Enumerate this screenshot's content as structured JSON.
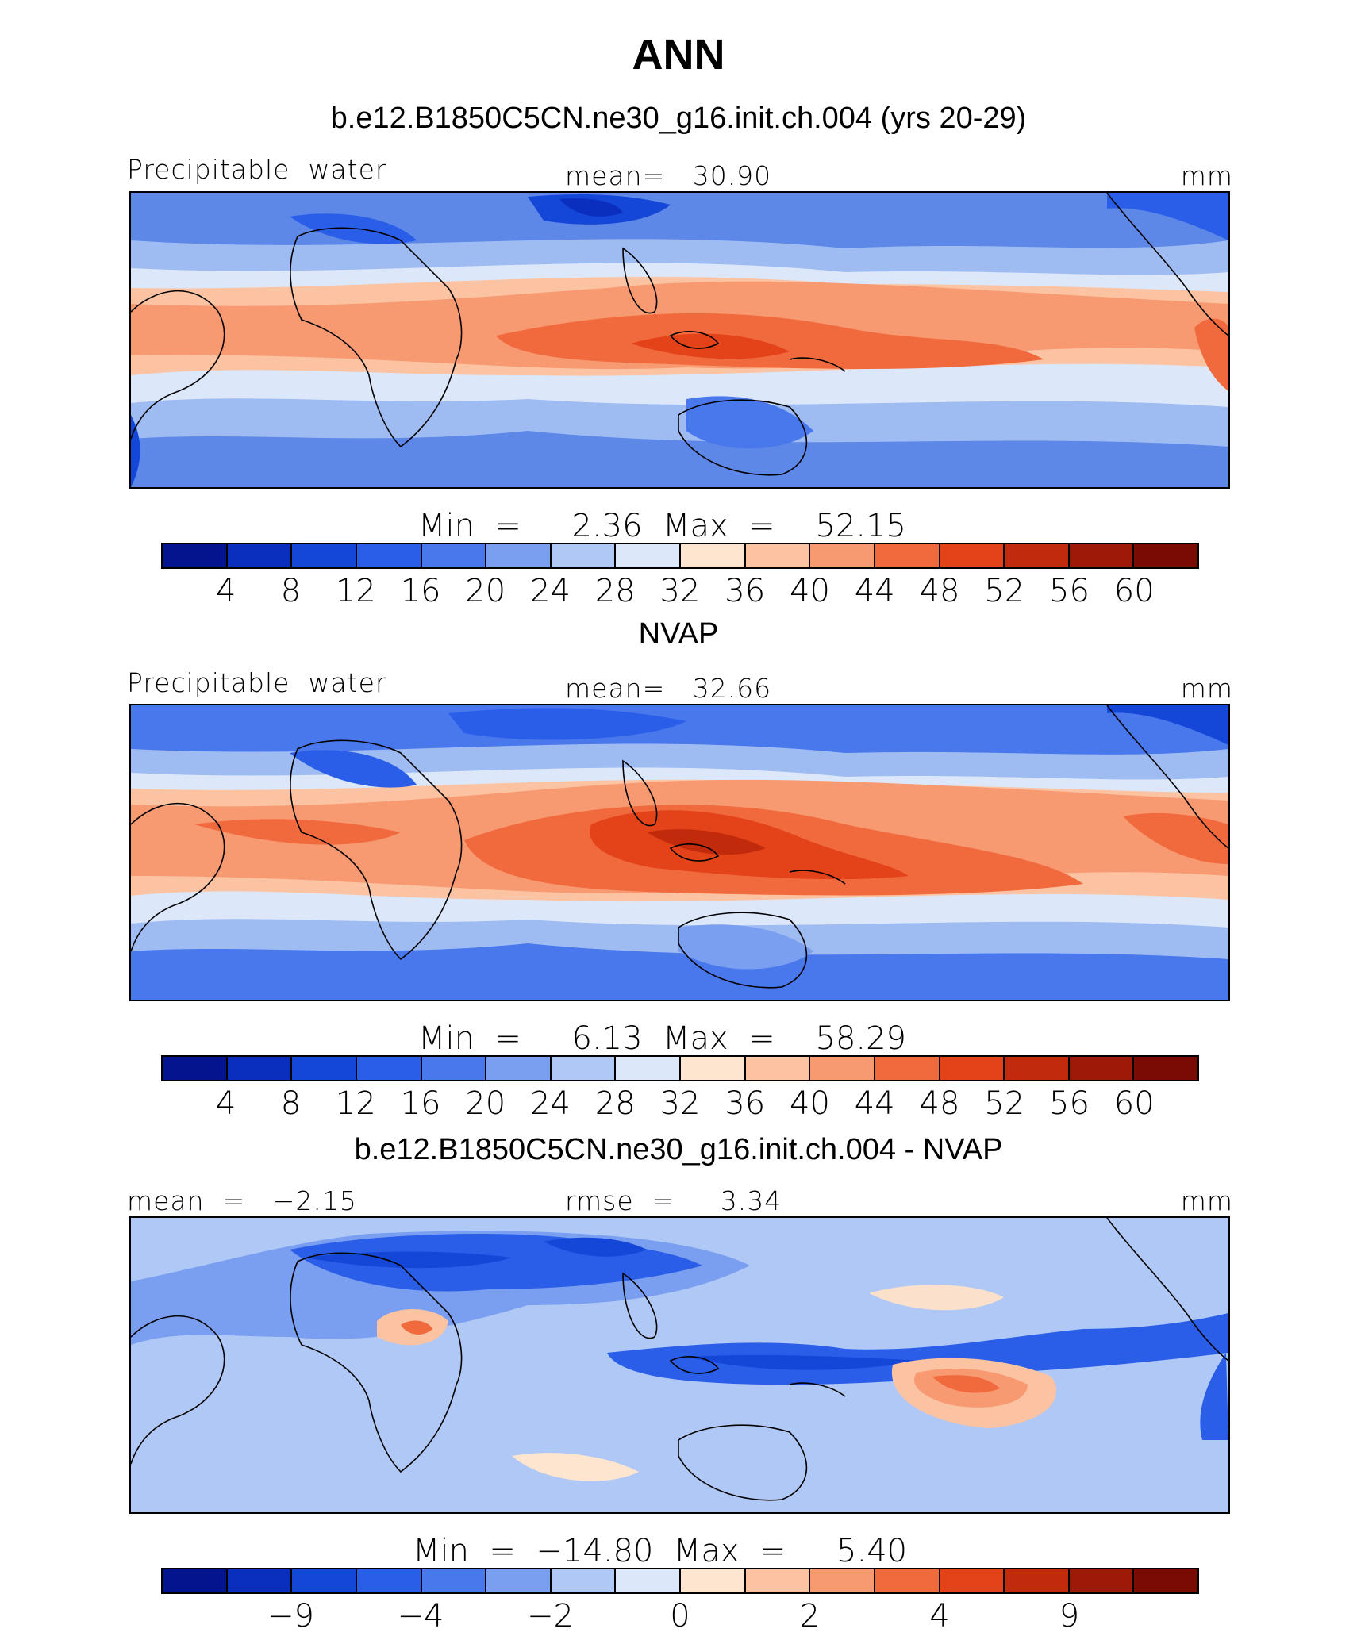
{
  "title": "ANN",
  "panels": [
    {
      "subtitle": "b.e12.B1850C5CN.ne30_g16.init.ch.004 (yrs 20-29)",
      "left_label": "Precipitable  water",
      "center_label": "mean=   30.90",
      "units": "mm",
      "minmax": "Min  =     2.36  Max  =    52.15",
      "ticks": [
        "4",
        "8",
        "12",
        "16",
        "20",
        "24",
        "28",
        "32",
        "36",
        "40",
        "44",
        "48",
        "52",
        "56",
        "60"
      ]
    },
    {
      "subtitle": "NVAP",
      "left_label": "Precipitable  water",
      "center_label": "mean=   32.66",
      "units": "mm",
      "minmax": "Min  =     6.13  Max  =    58.29",
      "ticks": [
        "4",
        "8",
        "12",
        "16",
        "20",
        "24",
        "28",
        "32",
        "36",
        "40",
        "44",
        "48",
        "52",
        "56",
        "60"
      ]
    },
    {
      "subtitle": "b.e12.B1850C5CN.ne30_g16.init.ch.004 - NVAP",
      "left_label": "mean  =   −2.15",
      "center_label": "rmse  =     3.34",
      "units": "mm",
      "minmax": "Min  =  −14.80  Max  =     5.40",
      "ticks": [
        "−9",
        "−4",
        "−2",
        "0",
        "2",
        "4",
        "9"
      ]
    }
  ],
  "colorbar_colors": [
    "#04148f",
    "#0a2fbf",
    "#1446d8",
    "#2a5ee8",
    "#4878ec",
    "#7a9ef0",
    "#b0c8f5",
    "#dce8fa",
    "#fde5d0",
    "#fbc3a2",
    "#f79a72",
    "#f16a3e",
    "#e44219",
    "#c22a0c",
    "#9c1a07",
    "#7a0b02"
  ]
}
